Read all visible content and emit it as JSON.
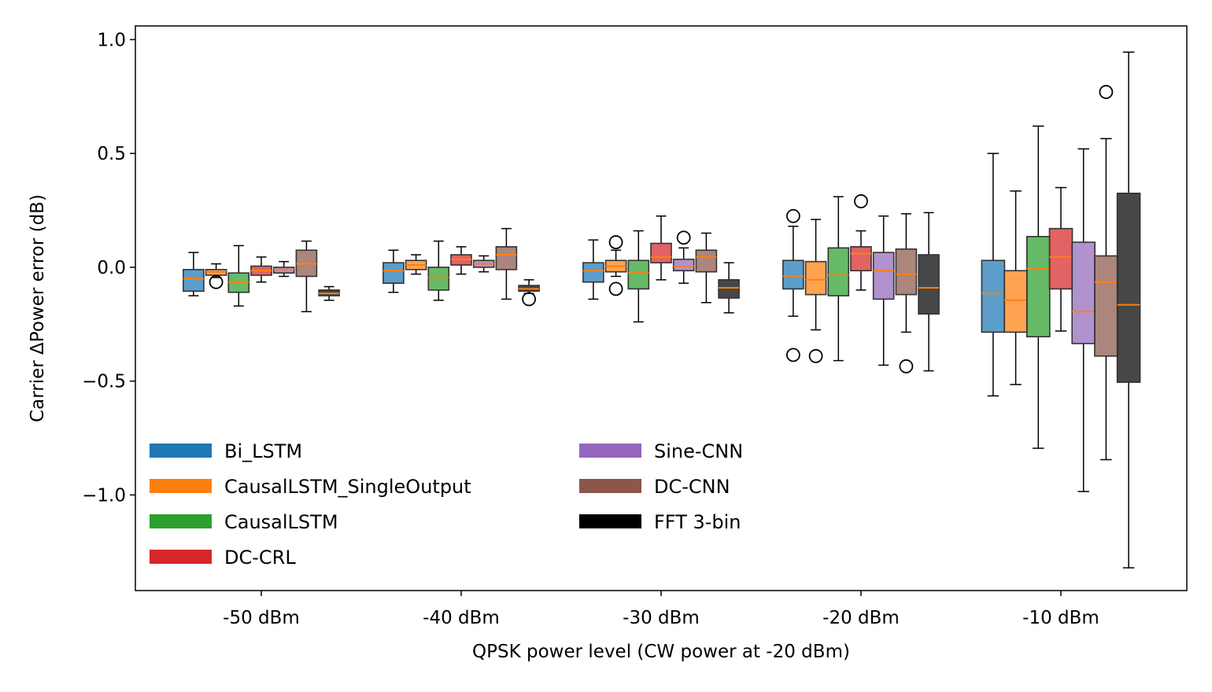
{
  "chart_data": {
    "type": "box",
    "title": "",
    "xlabel": "QPSK power level (CW power at -20 dBm)",
    "ylabel": "Carrier ΔPower error (dB)",
    "ylim": [
      -1.42,
      1.06
    ],
    "yticks": [
      {
        "value": 1.0,
        "label": "1.0"
      },
      {
        "value": 0.5,
        "label": "0.5"
      },
      {
        "value": 0.0,
        "label": "0.0"
      },
      {
        "value": -0.5,
        "label": "−0.5"
      },
      {
        "value": -1.0,
        "label": "−1.0"
      }
    ],
    "categories": [
      "-50 dBm",
      "-40 dBm",
      "-30 dBm",
      "-20 dBm",
      "-10 dBm"
    ],
    "legend_position": "lower-left",
    "series": [
      {
        "name": "Bi_LSTM",
        "color": "#1f77b4",
        "boxes": [
          {
            "whislo": -0.125,
            "q1": -0.105,
            "med": -0.05,
            "q3": -0.01,
            "whishi": 0.065,
            "fliers": []
          },
          {
            "whislo": -0.11,
            "q1": -0.07,
            "med": -0.015,
            "q3": 0.02,
            "whishi": 0.075,
            "fliers": []
          },
          {
            "whislo": -0.14,
            "q1": -0.065,
            "med": -0.015,
            "q3": 0.02,
            "whishi": 0.12,
            "fliers": []
          },
          {
            "whislo": -0.215,
            "q1": -0.095,
            "med": -0.04,
            "q3": 0.03,
            "whishi": 0.18,
            "fliers": [
              0.225,
              -0.385
            ]
          },
          {
            "whislo": -0.565,
            "q1": -0.285,
            "med": -0.115,
            "q3": 0.03,
            "whishi": 0.5,
            "fliers": []
          }
        ]
      },
      {
        "name": "CausalLSTM_SingleOutput",
        "color": "#ff7f0e",
        "boxes": [
          {
            "whislo": -0.045,
            "q1": -0.035,
            "med": -0.02,
            "q3": -0.01,
            "whishi": 0.015,
            "fliers": [
              -0.065
            ]
          },
          {
            "whislo": -0.03,
            "q1": -0.01,
            "med": 0.01,
            "q3": 0.03,
            "whishi": 0.055,
            "fliers": []
          },
          {
            "whislo": -0.04,
            "q1": -0.02,
            "med": 0.005,
            "q3": 0.03,
            "whishi": 0.075,
            "fliers": [
              0.11,
              -0.095
            ]
          },
          {
            "whislo": -0.275,
            "q1": -0.12,
            "med": -0.055,
            "q3": 0.025,
            "whishi": 0.21,
            "fliers": [
              -0.39
            ]
          },
          {
            "whislo": -0.515,
            "q1": -0.285,
            "med": -0.145,
            "q3": -0.015,
            "whishi": 0.335,
            "fliers": []
          }
        ]
      },
      {
        "name": "CausalLSTM",
        "color": "#2ca02c",
        "boxes": [
          {
            "whislo": -0.17,
            "q1": -0.11,
            "med": -0.065,
            "q3": -0.025,
            "whishi": 0.095,
            "fliers": []
          },
          {
            "whislo": -0.145,
            "q1": -0.1,
            "med": -0.045,
            "q3": 0.0,
            "whishi": 0.115,
            "fliers": []
          },
          {
            "whislo": -0.24,
            "q1": -0.095,
            "med": -0.025,
            "q3": 0.03,
            "whishi": 0.16,
            "fliers": []
          },
          {
            "whislo": -0.41,
            "q1": -0.125,
            "med": -0.035,
            "q3": 0.085,
            "whishi": 0.31,
            "fliers": []
          },
          {
            "whislo": -0.795,
            "q1": -0.305,
            "med": -0.005,
            "q3": 0.135,
            "whishi": 0.62,
            "fliers": []
          }
        ]
      },
      {
        "name": "DC-CRL",
        "color": "#d62728",
        "boxes": [
          {
            "whislo": -0.065,
            "q1": -0.035,
            "med": -0.015,
            "q3": 0.005,
            "whishi": 0.045,
            "fliers": []
          },
          {
            "whislo": -0.03,
            "q1": 0.01,
            "med": 0.035,
            "q3": 0.055,
            "whishi": 0.09,
            "fliers": []
          },
          {
            "whislo": -0.055,
            "q1": 0.02,
            "med": 0.045,
            "q3": 0.105,
            "whishi": 0.225,
            "fliers": []
          },
          {
            "whislo": -0.1,
            "q1": -0.015,
            "med": 0.06,
            "q3": 0.09,
            "whishi": 0.16,
            "fliers": [
              0.29
            ]
          },
          {
            "whislo": -0.28,
            "q1": -0.095,
            "med": 0.045,
            "q3": 0.17,
            "whishi": 0.35,
            "fliers": []
          }
        ]
      },
      {
        "name": "Sine-CNN",
        "color": "#9467bd",
        "boxes": [
          {
            "whislo": -0.04,
            "q1": -0.025,
            "med": -0.01,
            "q3": 0.0,
            "whishi": 0.025,
            "fliers": []
          },
          {
            "whislo": -0.02,
            "q1": 0.0,
            "med": 0.015,
            "q3": 0.03,
            "whishi": 0.05,
            "fliers": []
          },
          {
            "whislo": -0.07,
            "q1": -0.015,
            "med": 0.005,
            "q3": 0.035,
            "whishi": 0.085,
            "fliers": [
              0.13
            ]
          },
          {
            "whislo": -0.43,
            "q1": -0.14,
            "med": -0.015,
            "q3": 0.065,
            "whishi": 0.225,
            "fliers": []
          },
          {
            "whislo": -0.985,
            "q1": -0.335,
            "med": -0.195,
            "q3": 0.11,
            "whishi": 0.52,
            "fliers": []
          }
        ]
      },
      {
        "name": "DC-CNN",
        "color": "#8c564b",
        "boxes": [
          {
            "whislo": -0.195,
            "q1": -0.04,
            "med": 0.015,
            "q3": 0.075,
            "whishi": 0.115,
            "fliers": []
          },
          {
            "whislo": -0.14,
            "q1": -0.01,
            "med": 0.055,
            "q3": 0.09,
            "whishi": 0.17,
            "fliers": []
          },
          {
            "whislo": -0.155,
            "q1": -0.02,
            "med": 0.045,
            "q3": 0.075,
            "whishi": 0.15,
            "fliers": []
          },
          {
            "whislo": -0.285,
            "q1": -0.12,
            "med": -0.03,
            "q3": 0.08,
            "whishi": 0.235,
            "fliers": [
              -0.435
            ]
          },
          {
            "whislo": -0.845,
            "q1": -0.39,
            "med": -0.065,
            "q3": 0.05,
            "whishi": 0.565,
            "fliers": [
              0.77
            ]
          }
        ]
      },
      {
        "name": "FFT 3-bin",
        "color": "#000000",
        "boxes": [
          {
            "whislo": -0.145,
            "q1": -0.125,
            "med": -0.115,
            "q3": -0.1,
            "whishi": -0.085,
            "fliers": []
          },
          {
            "whislo": -0.115,
            "q1": -0.105,
            "med": -0.095,
            "q3": -0.08,
            "whishi": -0.055,
            "fliers": [
              -0.14
            ]
          },
          {
            "whislo": -0.2,
            "q1": -0.135,
            "med": -0.09,
            "q3": -0.055,
            "whishi": 0.02,
            "fliers": []
          },
          {
            "whislo": -0.455,
            "q1": -0.205,
            "med": -0.09,
            "q3": 0.055,
            "whishi": 0.24,
            "fliers": []
          },
          {
            "whislo": -1.32,
            "q1": -0.505,
            "med": -0.165,
            "q3": 0.325,
            "whishi": 0.945,
            "fliers": []
          }
        ]
      }
    ]
  }
}
